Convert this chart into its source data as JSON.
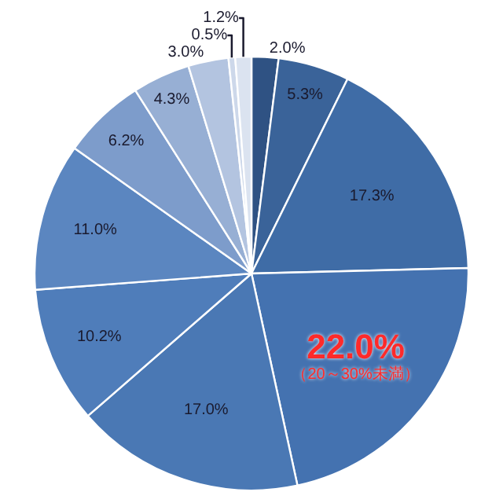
{
  "chart_data": {
    "type": "pie",
    "categories": [
      null,
      null,
      null,
      "（20～30%未満）",
      null,
      null,
      null,
      null,
      null,
      null,
      null,
      null
    ],
    "values": [
      2.0,
      5.3,
      17.3,
      22.0,
      17.0,
      10.2,
      11.0,
      6.2,
      4.3,
      3.0,
      0.5,
      1.2
    ],
    "value_labels": [
      "2.0%",
      "5.3%",
      "17.3%",
      "22.0%",
      "17.0%",
      "10.2%",
      "11.0%",
      "6.2%",
      "4.3%",
      "3.0%",
      "0.5%",
      "1.2%"
    ],
    "colors": [
      "#2f5283",
      "#3a6399",
      "#3f6ca6",
      "#4472b0",
      "#4a78b4",
      "#4f7dba",
      "#5b86c0",
      "#7d9ccb",
      "#97afd4",
      "#b3c4e0",
      "#cdd8ea",
      "#dbe3f0"
    ],
    "legend": false
  }
}
